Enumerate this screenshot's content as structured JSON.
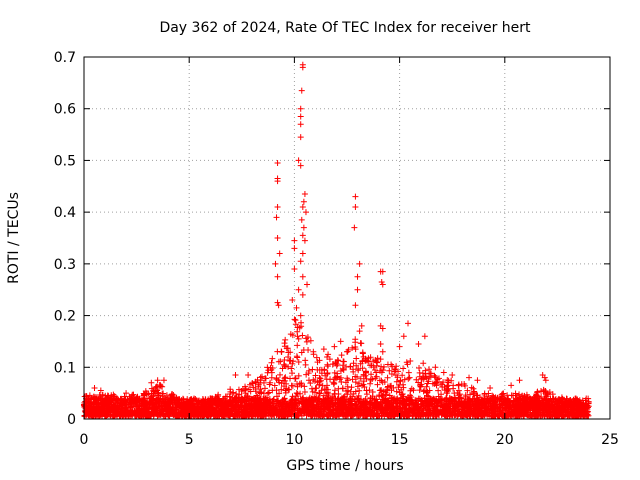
{
  "chart_data": {
    "type": "scatter",
    "title": "Day 362 of 2024, Rate Of TEC Index for receiver hert",
    "xlabel": "GPS time / hours",
    "ylabel": "ROTI / TECUs",
    "xlim": [
      0,
      25
    ],
    "ylim": [
      0,
      0.7
    ],
    "xticks": [
      0,
      5,
      10,
      15,
      20,
      25
    ],
    "yticks": [
      0,
      0.1,
      0.2,
      0.3,
      0.4,
      0.5,
      0.6,
      0.7
    ],
    "xtick_labels": [
      "0",
      "5",
      "10",
      "15",
      "20",
      "25"
    ],
    "ytick_labels": [
      "0",
      "0.1",
      "0.2",
      "0.3",
      "0.4",
      "0.5",
      "0.6",
      "0.7"
    ],
    "grid": true,
    "marker": "+",
    "series_color": "#ff0000",
    "x_range_of_data": [
      0,
      24
    ],
    "baseline_band": [
      0.005,
      0.04
    ],
    "notable_points": [
      {
        "x": 9.2,
        "y": 0.495
      },
      {
        "x": 9.2,
        "y": 0.465
      },
      {
        "x": 9.2,
        "y": 0.46
      },
      {
        "x": 9.2,
        "y": 0.41
      },
      {
        "x": 9.15,
        "y": 0.39
      },
      {
        "x": 9.2,
        "y": 0.35
      },
      {
        "x": 9.3,
        "y": 0.32
      },
      {
        "x": 9.1,
        "y": 0.3
      },
      {
        "x": 9.2,
        "y": 0.275
      },
      {
        "x": 9.2,
        "y": 0.225
      },
      {
        "x": 9.25,
        "y": 0.22
      },
      {
        "x": 10.4,
        "y": 0.685
      },
      {
        "x": 10.4,
        "y": 0.68
      },
      {
        "x": 10.35,
        "y": 0.635
      },
      {
        "x": 10.3,
        "y": 0.6
      },
      {
        "x": 10.3,
        "y": 0.585
      },
      {
        "x": 10.3,
        "y": 0.57
      },
      {
        "x": 10.3,
        "y": 0.545
      },
      {
        "x": 10.2,
        "y": 0.5
      },
      {
        "x": 10.3,
        "y": 0.49
      },
      {
        "x": 10.5,
        "y": 0.435
      },
      {
        "x": 10.45,
        "y": 0.42
      },
      {
        "x": 10.4,
        "y": 0.41
      },
      {
        "x": 10.55,
        "y": 0.4
      },
      {
        "x": 10.35,
        "y": 0.385
      },
      {
        "x": 10.45,
        "y": 0.37
      },
      {
        "x": 10.4,
        "y": 0.355
      },
      {
        "x": 10.5,
        "y": 0.345
      },
      {
        "x": 10.0,
        "y": 0.345
      },
      {
        "x": 10.0,
        "y": 0.33
      },
      {
        "x": 10.4,
        "y": 0.32
      },
      {
        "x": 10.3,
        "y": 0.305
      },
      {
        "x": 10.0,
        "y": 0.29
      },
      {
        "x": 10.4,
        "y": 0.275
      },
      {
        "x": 10.6,
        "y": 0.26
      },
      {
        "x": 10.2,
        "y": 0.25
      },
      {
        "x": 10.4,
        "y": 0.24
      },
      {
        "x": 9.9,
        "y": 0.23
      },
      {
        "x": 10.1,
        "y": 0.215
      },
      {
        "x": 10.3,
        "y": 0.2
      },
      {
        "x": 12.9,
        "y": 0.43
      },
      {
        "x": 12.9,
        "y": 0.41
      },
      {
        "x": 12.85,
        "y": 0.37
      },
      {
        "x": 13.1,
        "y": 0.3
      },
      {
        "x": 13.0,
        "y": 0.275
      },
      {
        "x": 13.0,
        "y": 0.25
      },
      {
        "x": 12.9,
        "y": 0.22
      },
      {
        "x": 13.2,
        "y": 0.18
      },
      {
        "x": 13.1,
        "y": 0.17
      },
      {
        "x": 14.1,
        "y": 0.285
      },
      {
        "x": 14.2,
        "y": 0.285
      },
      {
        "x": 14.15,
        "y": 0.265
      },
      {
        "x": 14.2,
        "y": 0.26
      },
      {
        "x": 14.1,
        "y": 0.18
      },
      {
        "x": 14.2,
        "y": 0.175
      },
      {
        "x": 14.1,
        "y": 0.145
      },
      {
        "x": 14.2,
        "y": 0.13
      },
      {
        "x": 15.4,
        "y": 0.185
      },
      {
        "x": 15.2,
        "y": 0.16
      },
      {
        "x": 16.2,
        "y": 0.16
      },
      {
        "x": 15.9,
        "y": 0.145
      },
      {
        "x": 15.0,
        "y": 0.14
      },
      {
        "x": 12.2,
        "y": 0.15
      },
      {
        "x": 11.9,
        "y": 0.14
      },
      {
        "x": 11.4,
        "y": 0.135
      },
      {
        "x": 12.5,
        "y": 0.13
      },
      {
        "x": 11.6,
        "y": 0.125
      },
      {
        "x": 11.1,
        "y": 0.11
      },
      {
        "x": 10.9,
        "y": 0.13
      },
      {
        "x": 9.7,
        "y": 0.12
      },
      {
        "x": 9.5,
        "y": 0.105
      },
      {
        "x": 8.9,
        "y": 0.095
      },
      {
        "x": 17.1,
        "y": 0.09
      },
      {
        "x": 17.5,
        "y": 0.085
      },
      {
        "x": 18.3,
        "y": 0.08
      },
      {
        "x": 18.7,
        "y": 0.075
      },
      {
        "x": 19.3,
        "y": 0.06
      },
      {
        "x": 20.3,
        "y": 0.065
      },
      {
        "x": 20.7,
        "y": 0.075
      },
      {
        "x": 21.8,
        "y": 0.085
      },
      {
        "x": 21.9,
        "y": 0.08
      },
      {
        "x": 21.95,
        "y": 0.075
      },
      {
        "x": 7.2,
        "y": 0.085
      },
      {
        "x": 7.8,
        "y": 0.085
      },
      {
        "x": 3.5,
        "y": 0.075
      },
      {
        "x": 3.8,
        "y": 0.075
      },
      {
        "x": 3.2,
        "y": 0.07
      },
      {
        "x": 0.5,
        "y": 0.06
      },
      {
        "x": 0.8,
        "y": 0.055
      },
      {
        "x": 2.0,
        "y": 0.05
      },
      {
        "x": 8.4,
        "y": 0.075
      },
      {
        "x": 16.7,
        "y": 0.1
      },
      {
        "x": 14.8,
        "y": 0.095
      }
    ],
    "activity_envelope": [
      {
        "x": 0,
        "upper": 0.045
      },
      {
        "x": 1,
        "upper": 0.05
      },
      {
        "x": 2,
        "upper": 0.045
      },
      {
        "x": 3,
        "upper": 0.055
      },
      {
        "x": 3.7,
        "upper": 0.07
      },
      {
        "x": 4.5,
        "upper": 0.04
      },
      {
        "x": 5,
        "upper": 0.035
      },
      {
        "x": 6,
        "upper": 0.04
      },
      {
        "x": 7,
        "upper": 0.06
      },
      {
        "x": 8,
        "upper": 0.07
      },
      {
        "x": 9,
        "upper": 0.12
      },
      {
        "x": 9.5,
        "upper": 0.15
      },
      {
        "x": 10,
        "upper": 0.2
      },
      {
        "x": 10.5,
        "upper": 0.2
      },
      {
        "x": 11,
        "upper": 0.12
      },
      {
        "x": 12,
        "upper": 0.12
      },
      {
        "x": 13,
        "upper": 0.16
      },
      {
        "x": 14,
        "upper": 0.12
      },
      {
        "x": 15,
        "upper": 0.11
      },
      {
        "x": 16,
        "upper": 0.12
      },
      {
        "x": 17,
        "upper": 0.08
      },
      {
        "x": 18,
        "upper": 0.07
      },
      {
        "x": 19,
        "upper": 0.05
      },
      {
        "x": 20,
        "upper": 0.05
      },
      {
        "x": 21,
        "upper": 0.05
      },
      {
        "x": 22,
        "upper": 0.06
      },
      {
        "x": 23,
        "upper": 0.035
      },
      {
        "x": 24,
        "upper": 0.03
      }
    ]
  }
}
